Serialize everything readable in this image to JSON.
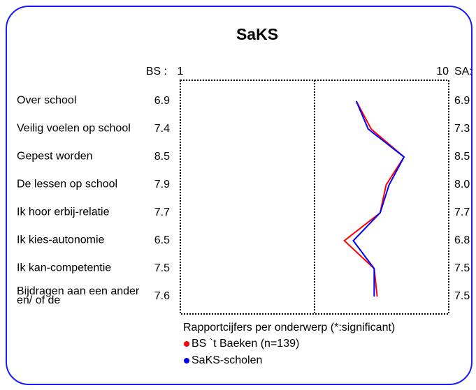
{
  "chart_data": {
    "type": "line",
    "title": "SaKS",
    "orientation": "horizontal",
    "left_header": "BS :",
    "right_header": "SA:",
    "categories": [
      "Over school",
      "Veilig voelen op school",
      "Gepest worden",
      "De lessen op school",
      "Ik hoor erbij-relatie",
      "Ik kies-autonomie",
      "Ik kan-competentie",
      "Bijdragen aan een ander en/ of de"
    ],
    "series": [
      {
        "name": "BS `t Baeken (n=139)",
        "color": "#ff0000",
        "values": [
          6.9,
          7.4,
          8.5,
          7.9,
          7.7,
          6.5,
          7.5,
          7.6
        ],
        "value_labels": [
          "6.9",
          "7.4",
          "8.5",
          "7.9",
          "7.7",
          "6.5",
          "7.5",
          "7.6"
        ]
      },
      {
        "name": "SaKS-scholen",
        "color": "#0000ff",
        "values": [
          6.9,
          7.3,
          8.5,
          8.0,
          7.7,
          6.8,
          7.5,
          7.5
        ],
        "value_labels": [
          "6.9",
          "7.3",
          "8.5",
          "8.0",
          "7.7",
          "6.8",
          "7.5",
          "7.5"
        ]
      }
    ],
    "xlim": [
      1,
      10
    ],
    "xticks": [
      1,
      10
    ],
    "reference_line": 5.5,
    "xlabel": "Rapportcijfers per onderwerp (*:significant)"
  }
}
